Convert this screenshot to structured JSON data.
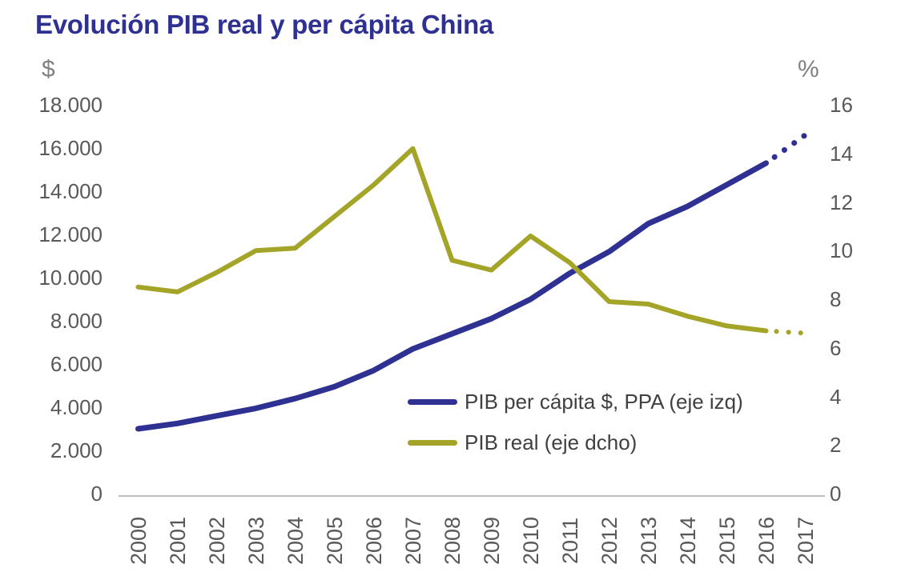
{
  "title": "Evolución PIB real y per cápita China",
  "colors": {
    "title": "#2e3192",
    "per_capita_line": "#2e3192",
    "real_gdp_line": "#a3a428",
    "axis_text": "#595959",
    "legend_text": "#404040",
    "axis_line": "#bfbfbf"
  },
  "left_axis": {
    "symbol": "$",
    "ticks": [
      {
        "v": 18000,
        "t": "18.000"
      },
      {
        "v": 16000,
        "t": "16.000"
      },
      {
        "v": 14000,
        "t": "14.000"
      },
      {
        "v": 12000,
        "t": "12.000"
      },
      {
        "v": 10000,
        "t": "10.000"
      },
      {
        "v": 8000,
        "t": "8.000"
      },
      {
        "v": 6000,
        "t": "6.000"
      },
      {
        "v": 4000,
        "t": "4.000"
      },
      {
        "v": 2000,
        "t": "2.000"
      },
      {
        "v": 0,
        "t": "0"
      }
    ]
  },
  "right_axis": {
    "symbol": "%",
    "ticks": [
      {
        "v": 16,
        "t": "16"
      },
      {
        "v": 14,
        "t": "14"
      },
      {
        "v": 12,
        "t": "12"
      },
      {
        "v": 10,
        "t": "10"
      },
      {
        "v": 8,
        "t": "8"
      },
      {
        "v": 6,
        "t": "6"
      },
      {
        "v": 4,
        "t": "4"
      },
      {
        "v": 2,
        "t": "2"
      },
      {
        "v": 0,
        "t": "0"
      }
    ]
  },
  "chart_data": {
    "type": "line",
    "title": "Evolución PIB real y per cápita China",
    "x": [
      "2000",
      "2001",
      "2002",
      "2003",
      "2004",
      "2005",
      "2006",
      "2007",
      "2008",
      "2009",
      "2010",
      "2011",
      "2012",
      "2013",
      "2014",
      "2015",
      "2016",
      "2017"
    ],
    "left_ylim": [
      0,
      18000
    ],
    "right_ylim": [
      0,
      16
    ],
    "grid": false,
    "legend_position": "inside-bottom-right",
    "series": [
      {
        "id": "pib-per-capita",
        "name": "PIB per cápita $, PPA (eje izq)",
        "axis": "left",
        "color": "#2e3192",
        "dotted_last_segment": true,
        "values": [
          3000,
          3250,
          3600,
          3950,
          4400,
          4950,
          5700,
          6700,
          7400,
          8100,
          9000,
          10200,
          11200,
          12500,
          13300,
          14300,
          15300,
          16600
        ]
      },
      {
        "id": "pib-real",
        "name": "PIB real (eje dcho)",
        "axis": "right",
        "color": "#a3a428",
        "dotted_last_segment": true,
        "values": [
          8.5,
          8.3,
          9.1,
          10.0,
          10.1,
          11.4,
          12.7,
          14.2,
          9.6,
          9.2,
          10.6,
          9.5,
          7.9,
          7.8,
          7.3,
          6.9,
          6.7,
          6.6
        ]
      }
    ]
  }
}
